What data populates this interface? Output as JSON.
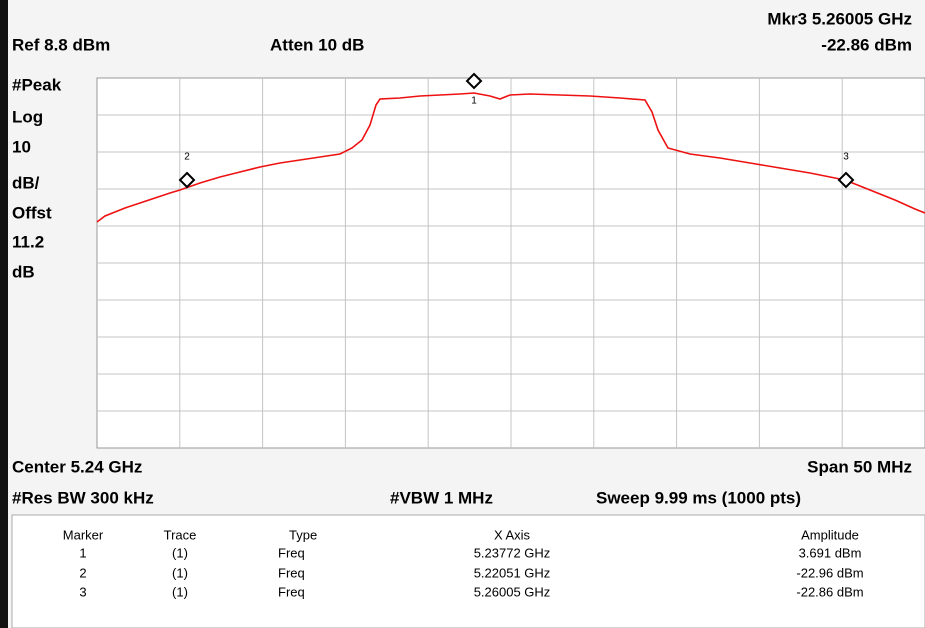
{
  "header": {
    "marker_readout": "Mkr3  5.26005 GHz",
    "ref": "Ref 8.8 dBm",
    "atten": "Atten 10 dB",
    "marker_amplitude": "-22.86 dBm"
  },
  "side_labels": [
    "#Peak",
    "Log",
    "10",
    "dB/",
    "Offst",
    "11.2",
    "dB"
  ],
  "footer": {
    "center": "Center 5.24 GHz",
    "span": "Span 50 MHz",
    "res_bw": "#Res BW 300 kHz",
    "vbw": "#VBW 1 MHz",
    "sweep": "Sweep 9.99 ms (1000 pts)"
  },
  "table": {
    "columns": [
      "Marker",
      "Trace",
      "Type",
      "X Axis",
      "Amplitude"
    ],
    "rows": [
      [
        "1",
        "(1)",
        "Freq",
        "5.23772 GHz",
        "3.691 dBm"
      ],
      [
        "2",
        "(1)",
        "Freq",
        "5.22051 GHz",
        "-22.96 dBm"
      ],
      [
        "3",
        "(1)",
        "Freq",
        "5.26005 GHz",
        "-22.86 dBm"
      ]
    ]
  }
}
